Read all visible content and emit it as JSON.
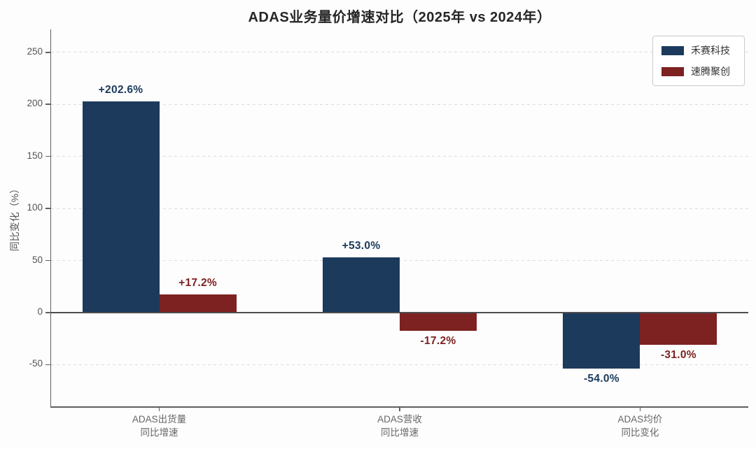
{
  "chart_data": {
    "type": "bar",
    "title": "ADAS业务量价增速对比（2025年 vs 2024年）",
    "ylabel": "同比变化（%）",
    "xlabel": "",
    "categories": [
      "ADAS出货量\n同比增速",
      "ADAS营收\n同比增速",
      "ADAS均价\n同比变化"
    ],
    "series": [
      {
        "name": "禾赛科技",
        "color": "#1B3A5C",
        "values": [
          202.6,
          53.0,
          -54.0
        ],
        "value_labels": [
          "+202.6%",
          "+53.0%",
          "-54.0%"
        ]
      },
      {
        "name": "速腾聚创",
        "color": "#7D2121",
        "values": [
          17.2,
          -17.2,
          -31.0
        ],
        "value_labels": [
          "+17.2%",
          "-17.2%",
          "-31.0%"
        ]
      }
    ],
    "y_ticks": [
      250,
      200,
      150,
      100,
      50,
      0,
      -50
    ],
    "ylim": [
      -90,
      272
    ],
    "grid": "horizontal-dashed",
    "legend_position": "upper-right"
  },
  "style_colors": {
    "background": "#FDFDFD",
    "title_text": "#262626",
    "axis_spine": "#5F5F5F",
    "zero_line": "#4D4D4D",
    "grid_line": "#DCDCDC",
    "tick_text": "#555555",
    "category_text": "#666666",
    "hesai_blue": "#1B3A5C",
    "robosense_red": "#7D2121"
  }
}
